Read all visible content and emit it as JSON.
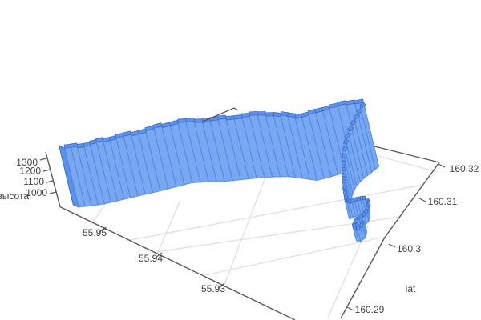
{
  "scene": {
    "background": "#ffffff",
    "axis_color": "#58595b",
    "grid_color": "#e2e2e2",
    "tick_label_color": "#444444",
    "z_axis": {
      "title": "высота",
      "ticks": [
        "1000",
        "1100",
        "1200",
        "1300"
      ]
    },
    "lat_side_axis": {
      "title": "",
      "ticks": [
        "55.95",
        "55.94",
        "55.93"
      ]
    },
    "lon_side_axis": {
      "title": "lat",
      "ticks": [
        "160.29",
        "160.3",
        "160.31",
        "160.32"
      ]
    }
  },
  "chart_data": {
    "type": "line",
    "variant": "3d-extruded-ribbon-wall",
    "title": "",
    "xlabel": "lat",
    "zlabel": "высота",
    "legend": null,
    "grid": true,
    "x_lon_ticks": [
      160.29,
      160.3,
      160.31,
      160.32
    ],
    "y_lat_ticks": [
      55.95,
      55.94,
      55.93
    ],
    "z_alt_ticks": [
      1000,
      1100,
      1200,
      1300
    ],
    "lon_range": [
      160.28,
      160.326
    ],
    "lat_range": [
      55.911,
      55.963
    ],
    "alt_range": [
      870,
      1392
    ],
    "extrude_base_alt": 870,
    "ribbon_fill": "#79a7f2",
    "ribbon_stripe": "#4c86e2",
    "ribbon_cap_fill": "#5f94ea",
    "ribbon_edge": "#3a6cc8",
    "track": {
      "lat": [
        55.9576,
        55.9561,
        55.9546,
        55.9532,
        55.9518,
        55.9502,
        55.9486,
        55.9469,
        55.9452,
        55.9432,
        55.9412,
        55.9393,
        55.9374,
        55.9355,
        55.9335,
        55.9315,
        55.9295,
        55.928,
        55.9266,
        55.9247,
        55.9228,
        55.9232,
        55.9237,
        55.924,
        55.9238,
        55.9234,
        55.923,
        55.9226,
        55.9221,
        55.9217,
        55.9213,
        55.9208,
        55.9202,
        55.9197,
        55.9194,
        55.9196,
        55.92,
        55.9199,
        55.9193,
        55.9187,
        55.9184,
        55.9187
      ],
      "lon": [
        160.2814,
        160.2826,
        160.2839,
        160.2854,
        160.2869,
        160.2886,
        160.2903,
        160.2922,
        160.2941,
        160.2955,
        160.2968,
        160.2983,
        160.2998,
        160.3012,
        160.3025,
        160.3033,
        160.3041,
        160.3058,
        160.3075,
        160.3093,
        160.3111,
        160.3096,
        160.308,
        160.3063,
        160.3047,
        160.3033,
        160.3022,
        160.3012,
        160.3004,
        160.3008,
        160.3017,
        160.3025,
        160.3029,
        160.3025,
        160.3015,
        160.3004,
        160.2993,
        160.2981,
        160.2974,
        160.2976,
        160.2986,
        160.2996
      ],
      "alt": [
        1345,
        1338,
        1350,
        1344,
        1352,
        1342,
        1353,
        1347,
        1355,
        1348,
        1358,
        1352,
        1362,
        1368,
        1360,
        1372,
        1380,
        1385,
        1390,
        1392,
        1388,
        1345,
        1295,
        1245,
        1195,
        1145,
        1095,
        1050,
        1010,
        985,
        978,
        973,
        970,
        968,
        966,
        964,
        963,
        962,
        961,
        960,
        960,
        961
      ]
    }
  }
}
